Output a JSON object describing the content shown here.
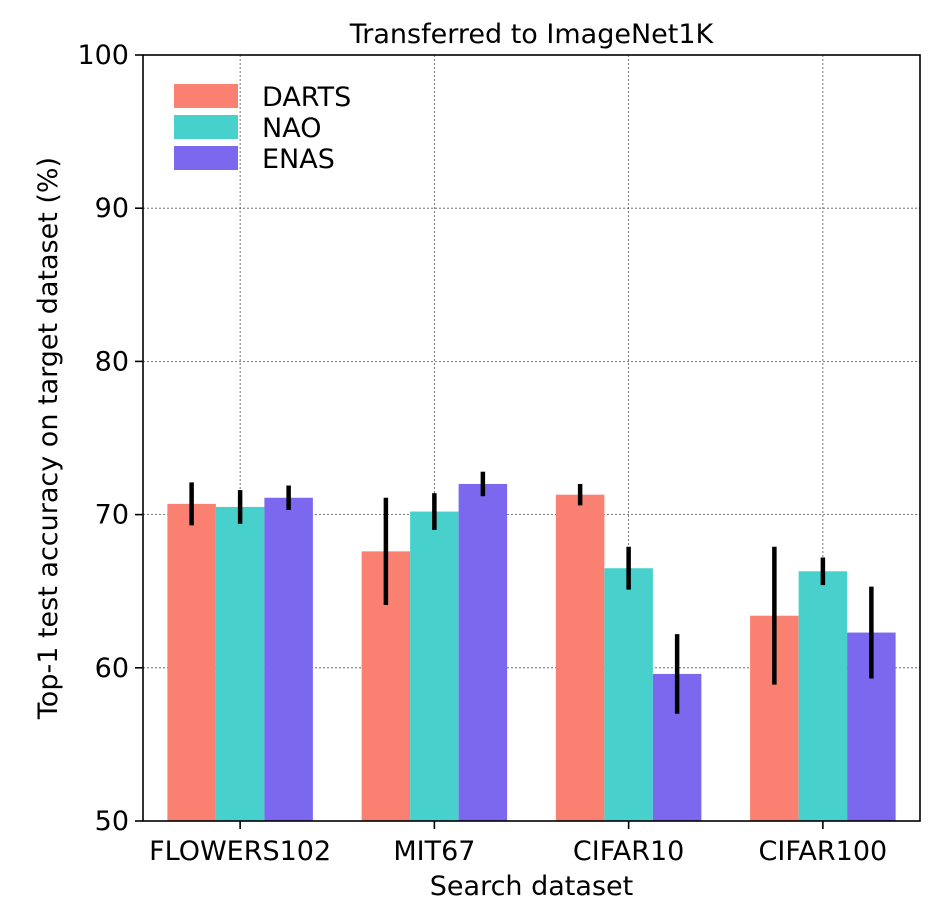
{
  "chart_data": {
    "type": "bar",
    "title": "Transferred to ImageNet1K",
    "xlabel": "Search dataset",
    "ylabel": "Top-1 test accuracy on target dataset (%)",
    "categories": [
      "FLOWERS102",
      "MIT67",
      "CIFAR10",
      "CIFAR100"
    ],
    "ylim": [
      50,
      100
    ],
    "yticks": [
      "50",
      "60",
      "70",
      "80",
      "90",
      "100"
    ],
    "grid": true,
    "legend_position": "top-left",
    "series": [
      {
        "name": "DARTS",
        "color": "#FA8072",
        "values": [
          70.7,
          67.6,
          71.3,
          63.4
        ],
        "errors": [
          1.4,
          3.5,
          0.7,
          4.5
        ]
      },
      {
        "name": "NAO",
        "color": "#48D1CC",
        "values": [
          70.5,
          70.2,
          66.5,
          66.3
        ],
        "errors": [
          1.1,
          1.2,
          1.4,
          0.9
        ]
      },
      {
        "name": "ENAS",
        "color": "#7B68EE",
        "values": [
          71.1,
          72.0,
          59.6,
          62.3
        ],
        "errors": [
          0.8,
          0.8,
          2.6,
          3.0
        ]
      }
    ]
  }
}
